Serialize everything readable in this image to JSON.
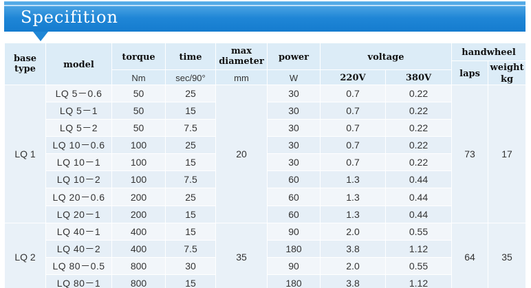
{
  "banner": {
    "title": "Specifition"
  },
  "header": {
    "base_type": "base type",
    "model": "model",
    "torque": "torque",
    "torque_unit": "Nm",
    "time": "time",
    "time_unit": "sec/90°",
    "max_diameter": "max diameter",
    "max_diameter_unit": "mm",
    "power": "power",
    "power_unit": "W",
    "voltage": "voltage",
    "v220": "220V",
    "v380": "380V",
    "handwheel": "handwheel",
    "laps": "laps",
    "weight": "weight",
    "weight_unit": "kg"
  },
  "groups": [
    {
      "base_type": "LQ 1",
      "max_diameter": "20",
      "laps": "73",
      "weight": "17",
      "rows": [
        {
          "model": "LQ 5－0.6",
          "torque": "50",
          "time": "25",
          "power": "30",
          "v220": "0.7",
          "v380": "0.22"
        },
        {
          "model": "LQ 5－1",
          "torque": "50",
          "time": "15",
          "power": "30",
          "v220": "0.7",
          "v380": "0.22"
        },
        {
          "model": "LQ 5－2",
          "torque": "50",
          "time": "7.5",
          "power": "30",
          "v220": "0.7",
          "v380": "0.22"
        },
        {
          "model": "LQ 10－0.6",
          "torque": "100",
          "time": "25",
          "power": "30",
          "v220": "0.7",
          "v380": "0.22"
        },
        {
          "model": "LQ 10－1",
          "torque": "100",
          "time": "15",
          "power": "30",
          "v220": "0.7",
          "v380": "0.22"
        },
        {
          "model": "LQ 10－2",
          "torque": "100",
          "time": "7.5",
          "power": "60",
          "v220": "1.3",
          "v380": "0.44"
        },
        {
          "model": "LQ 20－0.6",
          "torque": "200",
          "time": "25",
          "power": "60",
          "v220": "1.3",
          "v380": "0.44"
        },
        {
          "model": "LQ 20－1",
          "torque": "200",
          "time": "15",
          "power": "60",
          "v220": "1.3",
          "v380": "0.44"
        }
      ]
    },
    {
      "base_type": "LQ 2",
      "max_diameter": "35",
      "laps": "64",
      "weight": "35",
      "rows": [
        {
          "model": "LQ 40－1",
          "torque": "400",
          "time": "15",
          "power": "90",
          "v220": "2.0",
          "v380": "0.55"
        },
        {
          "model": "LQ 40－2",
          "torque": "400",
          "time": "7.5",
          "power": "180",
          "v220": "3.8",
          "v380": "1.12"
        },
        {
          "model": "LQ 80－0.5",
          "torque": "800",
          "time": "30",
          "power": "90",
          "v220": "2.0",
          "v380": "0.55"
        },
        {
          "model": "LQ 80－1",
          "torque": "800",
          "time": "15",
          "power": "180",
          "v220": "3.8",
          "v380": "1.12"
        }
      ]
    }
  ]
}
